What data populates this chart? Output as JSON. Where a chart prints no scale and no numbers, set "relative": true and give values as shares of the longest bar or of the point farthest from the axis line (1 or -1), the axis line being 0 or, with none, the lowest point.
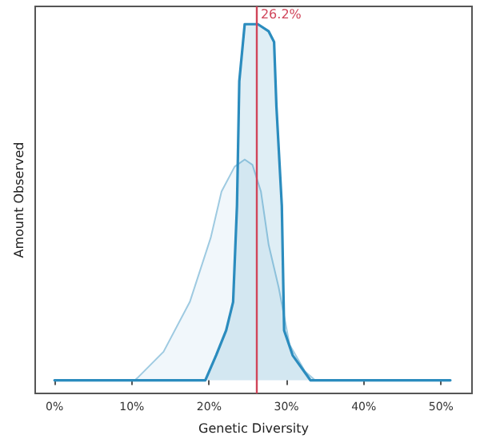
{
  "chart_data": {
    "type": "area",
    "relative": true,
    "xlabel": "Genetic Diversity",
    "ylabel": "Amount Observed",
    "xlim": [
      -2.5,
      54
    ],
    "xticks": [
      {
        "value": 0,
        "label": "0%"
      },
      {
        "value": 10,
        "label": "10%"
      },
      {
        "value": 20,
        "label": "20%"
      },
      {
        "value": 30,
        "label": "30%"
      },
      {
        "value": 40,
        "label": "40%"
      },
      {
        "value": 50,
        "label": "50%"
      }
    ],
    "tick_labels": "x",
    "grid": false,
    "marker": "none",
    "line_style": "solid",
    "series": [
      {
        "color": "#9ecae1",
        "x": [
          0,
          10.4,
          10.7,
          14.1,
          17.5,
          20.2,
          21.6,
          23.3,
          24.6,
          25.6,
          26.7,
          27.7,
          29.0,
          30.4,
          32.4,
          33.7,
          51.2
        ],
        "values": [
          0,
          0,
          0.006,
          0.08,
          0.22,
          0.4,
          0.53,
          0.6,
          0.62,
          0.605,
          0.53,
          0.38,
          0.26,
          0.1,
          0.025,
          0,
          0
        ]
      },
      {
        "color": "#2b8cbe",
        "x": [
          0,
          19.5,
          20.9,
          22.2,
          23.1,
          23.6,
          23.9,
          24.6,
          26.3,
          27.7,
          28.4,
          28.7,
          29.4,
          29.7,
          30.8,
          33.1,
          51.2
        ],
        "values": [
          0,
          0,
          0.07,
          0.14,
          0.22,
          0.49,
          0.84,
          1.0,
          1.0,
          0.98,
          0.95,
          0.77,
          0.49,
          0.14,
          0.07,
          0,
          0
        ]
      }
    ],
    "ref_lines": [
      {
        "axis": "x",
        "value": 26.2,
        "label": "26.2%",
        "color": "#d0455a"
      }
    ]
  }
}
